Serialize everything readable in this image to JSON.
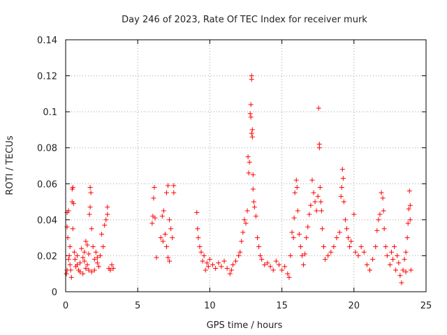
{
  "chart_data": {
    "type": "scatter",
    "title": "Day 246 of 2023, Rate Of TEC Index for receiver murk",
    "xlabel": "GPS time / hours",
    "ylabel": "ROTI / TECUs",
    "xlim": [
      0,
      25
    ],
    "ylim": [
      0,
      0.14
    ],
    "x_ticks": [
      0,
      5,
      10,
      15,
      20,
      25
    ],
    "y_ticks": [
      0,
      0.02,
      0.04,
      0.06,
      0.08,
      0.1,
      0.12,
      0.14
    ],
    "x_tick_labels": [
      "0",
      "5",
      "10",
      "15",
      "20",
      "25"
    ],
    "y_tick_labels": [
      "0",
      "0.02",
      "0.04",
      "0.06",
      "0.08",
      "0.1",
      "0.12",
      "0.14"
    ],
    "grid": true,
    "marker": "plus",
    "color": "#ff0000",
    "points": [
      [
        0.1,
        0.044
      ],
      [
        0.1,
        0.036
      ],
      [
        0.15,
        0.03
      ],
      [
        0.2,
        0.045
      ],
      [
        0.25,
        0.02
      ],
      [
        0.3,
        0.015
      ],
      [
        0.35,
        0.012
      ],
      [
        0.4,
        0.008
      ],
      [
        0.1,
        0.012
      ],
      [
        0.2,
        0.018
      ],
      [
        0.3,
        0.025
      ],
      [
        0.05,
        0.01
      ],
      [
        0.45,
        0.05
      ],
      [
        0.45,
        0.057
      ],
      [
        0.5,
        0.058
      ],
      [
        0.55,
        0.049
      ],
      [
        0.5,
        0.035
      ],
      [
        0.6,
        0.022
      ],
      [
        0.65,
        0.018
      ],
      [
        0.7,
        0.014
      ],
      [
        0.8,
        0.02
      ],
      [
        0.9,
        0.012
      ],
      [
        1.0,
        0.016
      ],
      [
        1.1,
        0.024
      ],
      [
        1.2,
        0.019
      ],
      [
        1.3,
        0.022
      ],
      [
        1.4,
        0.028
      ],
      [
        1.5,
        0.015
      ],
      [
        1.6,
        0.021
      ],
      [
        1.65,
        0.043
      ],
      [
        1.7,
        0.047
      ],
      [
        1.7,
        0.058
      ],
      [
        1.75,
        0.055
      ],
      [
        1.8,
        0.035
      ],
      [
        1.9,
        0.025
      ],
      [
        2.0,
        0.018
      ],
      [
        2.1,
        0.022
      ],
      [
        2.2,
        0.016
      ],
      [
        2.3,
        0.014
      ],
      [
        2.4,
        0.02
      ],
      [
        2.5,
        0.032
      ],
      [
        2.6,
        0.025
      ],
      [
        2.7,
        0.037
      ],
      [
        2.8,
        0.04
      ],
      [
        2.9,
        0.047
      ],
      [
        2.9,
        0.043
      ],
      [
        3.0,
        0.013
      ],
      [
        3.1,
        0.012
      ],
      [
        3.2,
        0.015
      ],
      [
        3.3,
        0.013
      ],
      [
        0.8,
        0.015
      ],
      [
        1.0,
        0.011
      ],
      [
        1.2,
        0.01
      ],
      [
        1.4,
        0.013
      ],
      [
        1.6,
        0.012
      ],
      [
        1.8,
        0.011
      ],
      [
        2.0,
        0.012
      ],
      [
        2.2,
        0.019
      ],
      [
        1.5,
        0.026
      ],
      [
        1.3,
        0.017
      ],
      [
        6.0,
        0.038
      ],
      [
        6.05,
        0.042
      ],
      [
        6.1,
        0.052
      ],
      [
        6.15,
        0.058
      ],
      [
        6.2,
        0.041
      ],
      [
        6.3,
        0.019
      ],
      [
        6.6,
        0.03
      ],
      [
        6.7,
        0.042
      ],
      [
        6.8,
        0.045
      ],
      [
        6.9,
        0.032
      ],
      [
        7.0,
        0.025
      ],
      [
        7.0,
        0.055
      ],
      [
        7.1,
        0.059
      ],
      [
        7.2,
        0.04
      ],
      [
        7.3,
        0.035
      ],
      [
        7.4,
        0.03
      ],
      [
        7.5,
        0.059
      ],
      [
        7.5,
        0.055
      ],
      [
        7.1,
        0.019
      ],
      [
        7.2,
        0.017
      ],
      [
        6.75,
        0.028
      ],
      [
        9.1,
        0.044
      ],
      [
        9.15,
        0.035
      ],
      [
        9.2,
        0.03
      ],
      [
        9.3,
        0.025
      ],
      [
        9.4,
        0.022
      ],
      [
        9.5,
        0.017
      ],
      [
        9.6,
        0.02
      ],
      [
        9.7,
        0.012
      ],
      [
        9.8,
        0.016
      ],
      [
        9.9,
        0.014
      ],
      [
        10.0,
        0.018
      ],
      [
        10.2,
        0.015
      ],
      [
        10.4,
        0.013
      ],
      [
        10.6,
        0.016
      ],
      [
        10.8,
        0.014
      ],
      [
        11.0,
        0.017
      ],
      [
        11.2,
        0.013
      ],
      [
        11.4,
        0.01
      ],
      [
        11.5,
        0.012
      ],
      [
        11.6,
        0.015
      ],
      [
        11.8,
        0.017
      ],
      [
        12.0,
        0.02
      ],
      [
        12.1,
        0.022
      ],
      [
        12.2,
        0.028
      ],
      [
        12.3,
        0.033
      ],
      [
        12.4,
        0.04
      ],
      [
        12.5,
        0.038
      ],
      [
        12.6,
        0.045
      ],
      [
        12.65,
        0.075
      ],
      [
        12.7,
        0.066
      ],
      [
        12.75,
        0.072
      ],
      [
        12.8,
        0.099
      ],
      [
        12.85,
        0.097
      ],
      [
        12.85,
        0.104
      ],
      [
        12.9,
        0.12
      ],
      [
        12.9,
        0.118
      ],
      [
        12.9,
        0.088
      ],
      [
        12.95,
        0.09
      ],
      [
        12.95,
        0.086
      ],
      [
        13.0,
        0.065
      ],
      [
        13.0,
        0.057
      ],
      [
        13.05,
        0.05
      ],
      [
        13.1,
        0.047
      ],
      [
        13.2,
        0.042
      ],
      [
        13.3,
        0.03
      ],
      [
        13.4,
        0.025
      ],
      [
        13.5,
        0.02
      ],
      [
        13.6,
        0.018
      ],
      [
        13.8,
        0.015
      ],
      [
        14.0,
        0.016
      ],
      [
        14.2,
        0.014
      ],
      [
        14.4,
        0.012
      ],
      [
        14.6,
        0.017
      ],
      [
        14.8,
        0.015
      ],
      [
        15.0,
        0.012
      ],
      [
        15.2,
        0.014
      ],
      [
        15.4,
        0.01
      ],
      [
        15.5,
        0.008
      ],
      [
        15.6,
        0.02
      ],
      [
        15.7,
        0.033
      ],
      [
        15.8,
        0.03
      ],
      [
        15.85,
        0.041
      ],
      [
        15.9,
        0.055
      ],
      [
        16.0,
        0.062
      ],
      [
        16.05,
        0.058
      ],
      [
        16.1,
        0.045
      ],
      [
        16.2,
        0.032
      ],
      [
        16.3,
        0.025
      ],
      [
        16.4,
        0.02
      ],
      [
        16.5,
        0.015
      ],
      [
        16.6,
        0.021
      ],
      [
        16.7,
        0.03
      ],
      [
        16.8,
        0.036
      ],
      [
        16.9,
        0.043
      ],
      [
        17.0,
        0.048
      ],
      [
        17.1,
        0.062
      ],
      [
        17.2,
        0.055
      ],
      [
        17.3,
        0.05
      ],
      [
        17.4,
        0.045
      ],
      [
        17.5,
        0.053
      ],
      [
        17.55,
        0.102
      ],
      [
        17.6,
        0.082
      ],
      [
        17.6,
        0.08
      ],
      [
        17.65,
        0.058
      ],
      [
        17.7,
        0.05
      ],
      [
        17.75,
        0.045
      ],
      [
        17.8,
        0.035
      ],
      [
        17.9,
        0.025
      ],
      [
        18.0,
        0.018
      ],
      [
        18.2,
        0.02
      ],
      [
        18.4,
        0.022
      ],
      [
        18.6,
        0.025
      ],
      [
        18.8,
        0.03
      ],
      [
        19.0,
        0.033
      ],
      [
        19.1,
        0.053
      ],
      [
        19.15,
        0.058
      ],
      [
        19.2,
        0.068
      ],
      [
        19.25,
        0.063
      ],
      [
        19.3,
        0.05
      ],
      [
        19.4,
        0.04
      ],
      [
        19.5,
        0.035
      ],
      [
        19.6,
        0.03
      ],
      [
        19.7,
        0.025
      ],
      [
        19.8,
        0.028
      ],
      [
        20.0,
        0.043
      ],
      [
        20.1,
        0.022
      ],
      [
        20.3,
        0.02
      ],
      [
        20.5,
        0.025
      ],
      [
        20.7,
        0.022
      ],
      [
        20.9,
        0.015
      ],
      [
        21.1,
        0.012
      ],
      [
        21.3,
        0.018
      ],
      [
        21.5,
        0.025
      ],
      [
        21.6,
        0.034
      ],
      [
        21.7,
        0.04
      ],
      [
        21.8,
        0.043
      ],
      [
        21.9,
        0.055
      ],
      [
        22.0,
        0.052
      ],
      [
        22.05,
        0.045
      ],
      [
        22.1,
        0.035
      ],
      [
        22.2,
        0.025
      ],
      [
        22.3,
        0.02
      ],
      [
        22.5,
        0.015
      ],
      [
        22.7,
        0.018
      ],
      [
        22.9,
        0.012
      ],
      [
        23.1,
        0.016
      ],
      [
        23.2,
        0.009
      ],
      [
        23.3,
        0.005
      ],
      [
        23.4,
        0.012
      ],
      [
        23.5,
        0.018
      ],
      [
        23.6,
        0.022
      ],
      [
        23.7,
        0.03
      ],
      [
        23.75,
        0.038
      ],
      [
        23.8,
        0.046
      ],
      [
        23.85,
        0.056
      ],
      [
        23.9,
        0.048
      ],
      [
        23.9,
        0.04
      ],
      [
        23.95,
        0.012
      ],
      [
        23.6,
        0.011
      ],
      [
        23.0,
        0.02
      ],
      [
        22.8,
        0.025
      ],
      [
        22.6,
        0.022
      ]
    ]
  }
}
